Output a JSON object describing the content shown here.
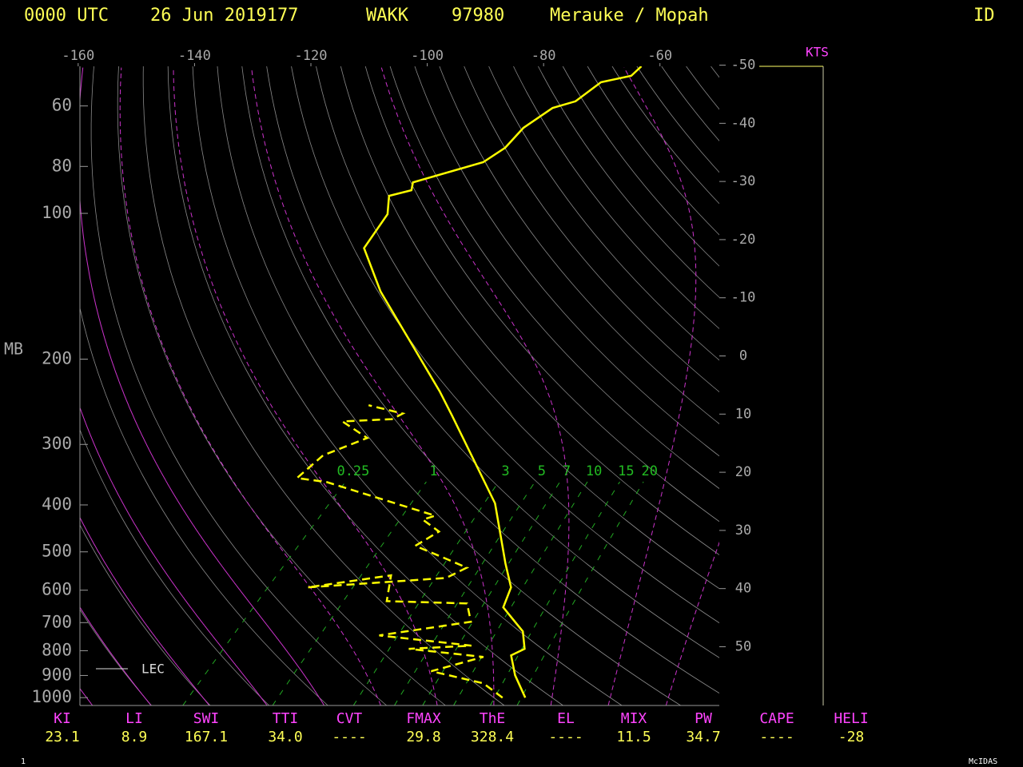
{
  "chart_data": {
    "type": "skewt",
    "header": [
      "0000 UTC",
      "26 Jun 2019177",
      "WAKK",
      "97980",
      "Merauke / Mopah"
    ],
    "id_label": "ID",
    "y_label": "MB",
    "wind_label": "KTS",
    "legend_label": "LEC",
    "ylim": [
      1038,
      49.7
    ],
    "yticks": [
      60,
      80,
      100,
      200,
      300,
      400,
      500,
      600,
      700,
      800,
      900,
      1000
    ],
    "xlim": [
      -159.7,
      -49.8
    ],
    "xticks": [
      -160,
      -140,
      -120,
      -100,
      -80,
      -60
    ],
    "isotherm_ticks": [
      -50,
      -40,
      -30,
      -20,
      -10,
      0,
      10,
      20,
      30,
      40,
      50
    ],
    "mixing_ratios": [
      0.25,
      1,
      3,
      5,
      7,
      10,
      15,
      20
    ],
    "temperature": {
      "color": "#ffff00",
      "pressure": [
        1000,
        899,
        818,
        793,
        730,
        651,
        592,
        528,
        397,
        341,
        261,
        233,
        145,
        118,
        100.4,
        92,
        89.6,
        86.3,
        78.4,
        73.2,
        66.6,
        60.6,
        58.7,
        53.6,
        52,
        49.7
      ],
      "values": [
        25.4,
        19.8,
        15.7,
        16.9,
        13.6,
        6.1,
        4.0,
        -1.1,
        -13.2,
        -21.4,
        -35.8,
        -42,
        -69.3,
        -79.6,
        -81.4,
        -84.3,
        -81.4,
        -82.5,
        -73.9,
        -72.6,
        -72.9,
        -71.3,
        -68.5,
        -67.4,
        -63.3,
        -63.2
      ]
    },
    "dewpoint": {
      "color": "#ffff00",
      "pressure": [
        1000,
        934,
        882,
        824,
        793,
        781,
        744,
        697,
        639,
        632,
        559,
        592,
        566,
        539,
        518,
        486,
        454,
        429,
        421,
        359,
        352,
        316,
        291,
        269,
        266,
        259,
        249
      ],
      "values": [
        21.5,
        15.7,
        4.7,
        11.2,
        -3,
        7.2,
        -10.4,
        3.0,
        -0.8,
        -15,
        -18.7,
        -31,
        -8.8,
        -7.0,
        -11.8,
        -19.6,
        -18,
        -22.8,
        -21.4,
        -45.7,
        -51.6,
        -51,
        -46.4,
        -53.5,
        -45.4,
        -44.5,
        -51.8
      ]
    },
    "indices": [
      {
        "name": "KI",
        "value": "23.1"
      },
      {
        "name": "LI",
        "value": "8.9"
      },
      {
        "name": "SWI",
        "value": "167.1"
      },
      {
        "name": "TTI",
        "value": "34.0"
      },
      {
        "name": "CVT",
        "value": "----"
      },
      {
        "name": "FMAX",
        "value": "29.8"
      },
      {
        "name": "ThE",
        "value": "328.4"
      },
      {
        "name": "EL",
        "value": "----"
      },
      {
        "name": "MIX",
        "value": "11.5"
      },
      {
        "name": "PW",
        "value": "34.7"
      },
      {
        "name": "CAPE",
        "value": "----"
      },
      {
        "name": "HELI",
        "value": "-28"
      }
    ],
    "footer_left": "1",
    "footer_right": "McIDAS"
  }
}
